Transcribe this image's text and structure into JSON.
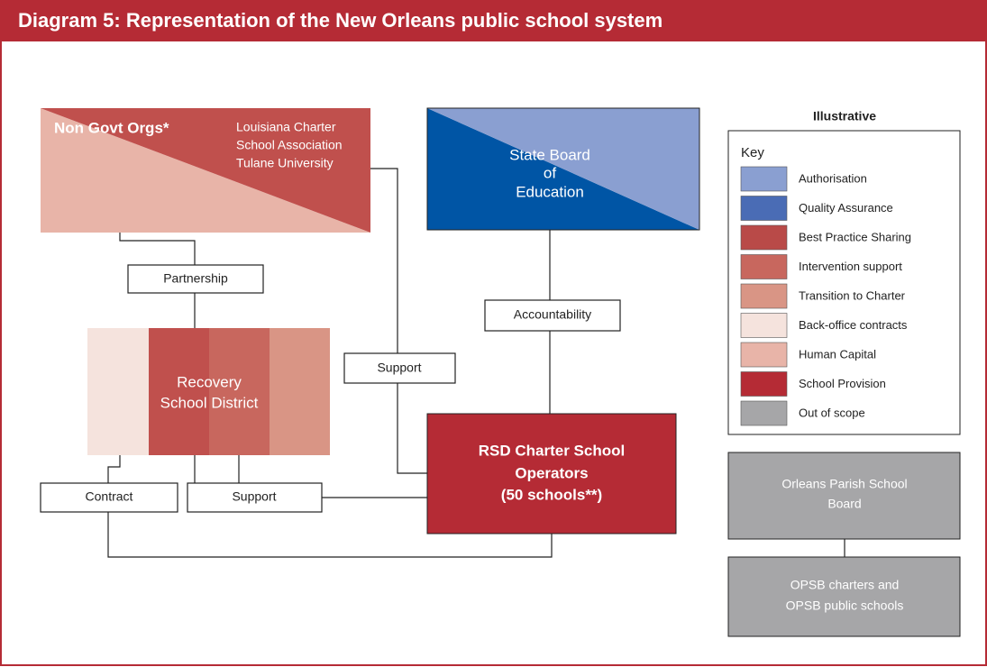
{
  "header": {
    "title": "Diagram 5:  Representation of the New Orleans public school system"
  },
  "nodes": {
    "ngo": {
      "label": "Non Govt Orgs*",
      "members": [
        "Louisiana Charter",
        "School Association",
        "Tulane University"
      ]
    },
    "state_board": {
      "lines": [
        "State Board",
        "of",
        "Education"
      ]
    },
    "rsd": {
      "lines": [
        "Recovery",
        "School District"
      ]
    },
    "operators": {
      "lines": [
        "RSD Charter School",
        "Operators",
        "(50 schools**)"
      ]
    },
    "opsb": {
      "lines": [
        "Orleans Parish School",
        "Board"
      ]
    },
    "opsb_schools": {
      "lines": [
        "OPSB charters and",
        "OPSB public schools"
      ]
    }
  },
  "edges": {
    "partnership": "Partnership",
    "accountability": "Accountability",
    "support_ngo": "Support",
    "contract": "Contract",
    "support_rsd": "Support"
  },
  "key": {
    "note": "Illustrative",
    "title": "Key",
    "items": [
      {
        "label": "Authorisation",
        "color": "#8a9fd1"
      },
      {
        "label": "Quality Assurance",
        "color": "#4a6cb5"
      },
      {
        "label": "Best Practice Sharing",
        "color": "#b94a48"
      },
      {
        "label": "Intervention support",
        "color": "#c8675e"
      },
      {
        "label": "Transition to Charter",
        "color": "#d99585"
      },
      {
        "label": "Back-office contracts",
        "color": "#f5e3dd"
      },
      {
        "label": "Human Capital",
        "color": "#e8b4a8"
      },
      {
        "label": "School Provision",
        "color": "#b52b35"
      },
      {
        "label": "Out of scope",
        "color": "#a6a6a8"
      }
    ]
  }
}
